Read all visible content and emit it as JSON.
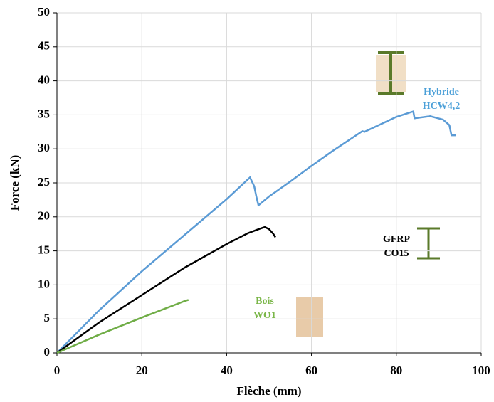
{
  "chart_data": {
    "type": "line",
    "xlabel": "Flèche (mm)",
    "ylabel": "Force (kN)",
    "xlim": [
      0,
      100
    ],
    "xticks": [
      0,
      20,
      40,
      60,
      80,
      100
    ],
    "ylim": [
      0,
      50
    ],
    "yticks": [
      0,
      5,
      10,
      15,
      20,
      25,
      30,
      35,
      40,
      45,
      50
    ],
    "grid": true,
    "series": [
      {
        "label_lines": [
          "Hybride",
          "HCW4,2"
        ],
        "color": "#5b9bd5",
        "x": [
          0,
          10,
          20,
          30,
          40,
          45.5,
          46.5,
          47,
          47.5,
          50,
          55,
          60,
          65,
          72,
          72.5,
          80,
          84,
          84.3,
          88,
          91,
          92.5,
          93,
          94
        ],
        "values": [
          0,
          6.3,
          12,
          17.3,
          22.6,
          25.8,
          24.5,
          23,
          21.7,
          23,
          25.2,
          27.5,
          29.7,
          32.6,
          32.5,
          34.7,
          35.5,
          34.5,
          34.8,
          34.3,
          33.5,
          32,
          32
        ]
      },
      {
        "label_lines": [
          "GFRP",
          "CO15"
        ],
        "color": "#000000",
        "x": [
          0,
          10,
          20,
          30,
          40,
          45,
          48,
          49,
          50,
          51,
          51.5
        ],
        "values": [
          0,
          4.5,
          8.5,
          12.5,
          16,
          17.6,
          18.3,
          18.5,
          18.2,
          17.5,
          17
        ]
      },
      {
        "label_lines": [
          "Bois",
          "WO1"
        ],
        "color": "#70ad47",
        "x": [
          0,
          10,
          20,
          30,
          31
        ],
        "values": [
          0,
          2.7,
          5.2,
          7.6,
          7.8
        ]
      }
    ]
  }
}
